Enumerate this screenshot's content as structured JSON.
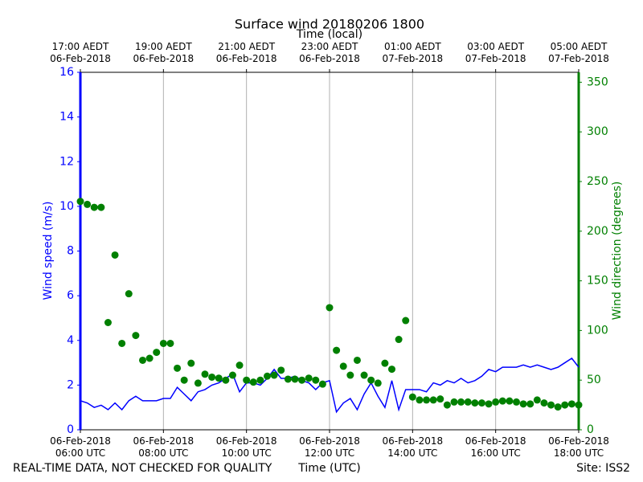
{
  "chart_data": {
    "type": "line",
    "title": "Surface wind 20180206 1800",
    "x_top_label": "Time (local)",
    "xlabel": "Time (UTC)",
    "ylabel": "Wind speed (m/s)",
    "y2label": "Wind direction (degrees)",
    "footer_left": "REAL-TIME DATA, NOT CHECKED FOR QUALITY",
    "footer_right": "Site: ISS2",
    "xlim": [
      "2018-02-06T06:00",
      "2018-02-06T18:00"
    ],
    "xticks": [
      {
        "value": "2018-02-06T06:00",
        "label": [
          "06-Feb-2018",
          "06:00 UTC"
        ]
      },
      {
        "value": "2018-02-06T08:00",
        "label": [
          "06-Feb-2018",
          "08:00 UTC"
        ]
      },
      {
        "value": "2018-02-06T10:00",
        "label": [
          "06-Feb-2018",
          "10:00 UTC"
        ]
      },
      {
        "value": "2018-02-06T12:00",
        "label": [
          "06-Feb-2018",
          "12:00 UTC"
        ]
      },
      {
        "value": "2018-02-06T14:00",
        "label": [
          "06-Feb-2018",
          "14:00 UTC"
        ]
      },
      {
        "value": "2018-02-06T16:00",
        "label": [
          "06-Feb-2018",
          "16:00 UTC"
        ]
      },
      {
        "value": "2018-02-06T18:00",
        "label": [
          "06-Feb-2018",
          "18:00 UTC"
        ]
      }
    ],
    "xticks_top": [
      {
        "value": "2018-02-06T06:00",
        "label": [
          "17:00 AEDT",
          "06-Feb-2018"
        ]
      },
      {
        "value": "2018-02-06T08:00",
        "label": [
          "19:00 AEDT",
          "06-Feb-2018"
        ]
      },
      {
        "value": "2018-02-06T10:00",
        "label": [
          "21:00 AEDT",
          "06-Feb-2018"
        ]
      },
      {
        "value": "2018-02-06T12:00",
        "label": [
          "23:00 AEDT",
          "06-Feb-2018"
        ]
      },
      {
        "value": "2018-02-06T14:00",
        "label": [
          "01:00 AEDT",
          "07-Feb-2018"
        ]
      },
      {
        "value": "2018-02-06T16:00",
        "label": [
          "03:00 AEDT",
          "07-Feb-2018"
        ]
      },
      {
        "value": "2018-02-06T18:00",
        "label": [
          "05:00 AEDT",
          "07-Feb-2018"
        ]
      }
    ],
    "ylim": [
      0,
      16
    ],
    "yticks": [
      0,
      2,
      4,
      6,
      8,
      10,
      12,
      14,
      16
    ],
    "ycolor": "#0000ff",
    "y2lim": [
      0,
      360
    ],
    "y2ticks": [
      0,
      50,
      100,
      150,
      200,
      250,
      300,
      350
    ],
    "y2color": "#008000",
    "grid": "x",
    "x": [
      "2018-02-06T06:00",
      "2018-02-06T06:10",
      "2018-02-06T06:20",
      "2018-02-06T06:30",
      "2018-02-06T06:40",
      "2018-02-06T06:50",
      "2018-02-06T07:00",
      "2018-02-06T07:10",
      "2018-02-06T07:20",
      "2018-02-06T07:30",
      "2018-02-06T07:40",
      "2018-02-06T07:50",
      "2018-02-06T08:00",
      "2018-02-06T08:10",
      "2018-02-06T08:20",
      "2018-02-06T08:30",
      "2018-02-06T08:40",
      "2018-02-06T08:50",
      "2018-02-06T09:00",
      "2018-02-06T09:10",
      "2018-02-06T09:20",
      "2018-02-06T09:30",
      "2018-02-06T09:40",
      "2018-02-06T09:50",
      "2018-02-06T10:00",
      "2018-02-06T10:10",
      "2018-02-06T10:20",
      "2018-02-06T10:30",
      "2018-02-06T10:40",
      "2018-02-06T10:50",
      "2018-02-06T11:00",
      "2018-02-06T11:10",
      "2018-02-06T11:20",
      "2018-02-06T11:30",
      "2018-02-06T11:40",
      "2018-02-06T11:50",
      "2018-02-06T12:00",
      "2018-02-06T12:10",
      "2018-02-06T12:20",
      "2018-02-06T12:30",
      "2018-02-06T12:40",
      "2018-02-06T12:50",
      "2018-02-06T13:00",
      "2018-02-06T13:10",
      "2018-02-06T13:20",
      "2018-02-06T13:30",
      "2018-02-06T13:40",
      "2018-02-06T13:50",
      "2018-02-06T14:00",
      "2018-02-06T14:10",
      "2018-02-06T14:20",
      "2018-02-06T14:30",
      "2018-02-06T14:40",
      "2018-02-06T14:50",
      "2018-02-06T15:00",
      "2018-02-06T15:10",
      "2018-02-06T15:20",
      "2018-02-06T15:30",
      "2018-02-06T15:40",
      "2018-02-06T15:50",
      "2018-02-06T16:00",
      "2018-02-06T16:10",
      "2018-02-06T16:20",
      "2018-02-06T16:30",
      "2018-02-06T16:40",
      "2018-02-06T16:50",
      "2018-02-06T17:00",
      "2018-02-06T17:10",
      "2018-02-06T17:20",
      "2018-02-06T17:30",
      "2018-02-06T17:40",
      "2018-02-06T17:50",
      "2018-02-06T18:00"
    ],
    "series": [
      {
        "type": "line",
        "color": "#0000ff",
        "values": [
          1.3,
          1.2,
          1.0,
          1.1,
          0.9,
          1.2,
          0.9,
          1.3,
          1.5,
          1.3,
          1.3,
          1.3,
          1.4,
          1.4,
          1.9,
          1.6,
          1.3,
          1.7,
          1.8,
          2.0,
          2.1,
          2.3,
          2.5,
          1.7,
          2.1,
          2.1,
          2.0,
          2.3,
          2.7,
          2.3,
          2.3,
          2.4,
          2.2,
          2.1,
          1.8,
          2.1,
          2.2,
          0.8,
          1.2,
          1.4,
          0.9,
          1.6,
          2.1,
          1.5,
          1.0,
          2.2,
          0.9,
          1.8,
          1.8,
          1.8,
          1.7,
          2.1,
          2.0,
          2.2,
          2.1,
          2.3,
          2.1,
          2.2,
          2.4,
          2.7,
          2.6,
          2.8,
          2.8,
          2.8,
          2.9,
          2.8,
          2.9,
          2.8,
          2.7,
          2.8,
          3.0,
          3.2,
          2.8
        ]
      },
      {
        "type": "scatter",
        "color": "#008000",
        "axis": "y2",
        "values": [
          230,
          227,
          224,
          224,
          108,
          176,
          87,
          137,
          95,
          70,
          72,
          78,
          87,
          87,
          62,
          50,
          67,
          47,
          56,
          53,
          52,
          50,
          55,
          65,
          50,
          48,
          50,
          54,
          55,
          60,
          51,
          51,
          50,
          52,
          50,
          46,
          123,
          80,
          64,
          55,
          70,
          55,
          50,
          47,
          67,
          61,
          91,
          110,
          33,
          30,
          30,
          30,
          31,
          25,
          28,
          28,
          28,
          27,
          27,
          26,
          28,
          29,
          29,
          28,
          26,
          26,
          30,
          27,
          25,
          23,
          25,
          26,
          25
        ]
      }
    ]
  }
}
